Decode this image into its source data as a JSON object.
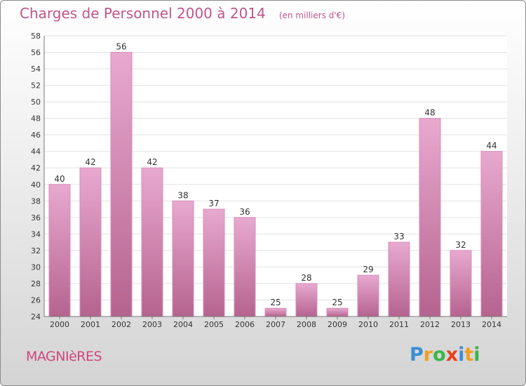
{
  "header": {
    "title": "Charges de Personnel 2000 à 2014",
    "subtitle": "(en milliers d'€)"
  },
  "footer": {
    "commune": "MAGNIèRES",
    "brand": {
      "letters": [
        "P",
        "r",
        "o",
        "x",
        "i",
        "t",
        "i"
      ],
      "colors": [
        "#3a8fd6",
        "#f0a020",
        "#3ab54a",
        "#e8401c",
        "#3a8fd6",
        "#f0a020",
        "#3ab54a"
      ]
    }
  },
  "colors": {
    "bar_top": "#e8a9d0",
    "bar_bottom": "#b5638f",
    "bar_edge": "#d88cb8",
    "title": "#c0558a"
  },
  "chart_data": {
    "type": "bar",
    "title": "Charges de Personnel 2000 à 2014",
    "subtitle": "(en milliers d'€)",
    "xlabel": "",
    "ylabel": "",
    "categories": [
      "2000",
      "2001",
      "2002",
      "2003",
      "2004",
      "2005",
      "2006",
      "2007",
      "2008",
      "2009",
      "2010",
      "2011",
      "2012",
      "2013",
      "2014"
    ],
    "values": [
      40,
      42,
      56,
      42,
      38,
      37,
      36,
      25,
      28,
      25,
      29,
      33,
      48,
      32,
      44
    ],
    "ylim": [
      24,
      58
    ],
    "yticks": [
      24,
      26,
      28,
      30,
      32,
      34,
      36,
      38,
      40,
      42,
      44,
      46,
      48,
      50,
      52,
      54,
      56,
      58
    ],
    "grid": "horizontal",
    "legend": "none",
    "data_labels": true
  }
}
